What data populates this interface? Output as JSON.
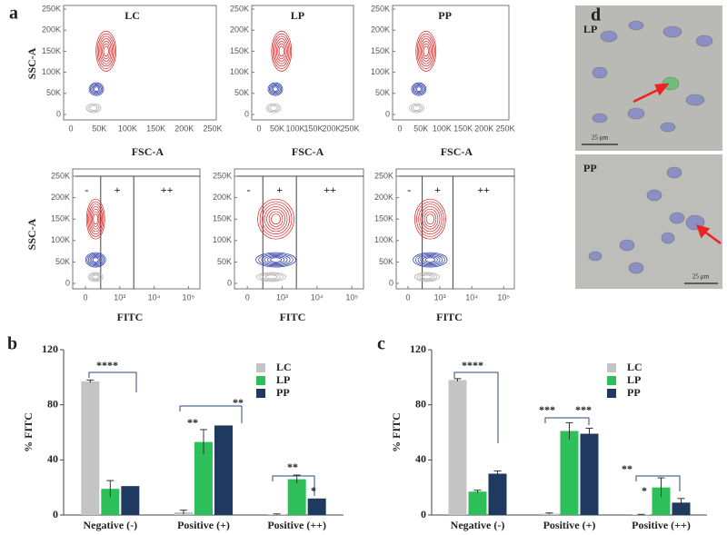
{
  "figure": {
    "panel_letters": [
      "a",
      "b",
      "c",
      "d"
    ]
  },
  "flow_cytometry": {
    "samples": [
      "LC",
      "LP",
      "PP"
    ],
    "ssc_label": "SSC-A",
    "fsc_label": "FSC-A",
    "fitc_label": "FITC",
    "gates": [
      "-",
      "+",
      "++"
    ],
    "scatter_ticks": [
      {
        "value": 0,
        "label": "0"
      },
      {
        "value": 50000,
        "label": "50K"
      },
      {
        "value": 100000,
        "label": "100K"
      },
      {
        "value": 150000,
        "label": "150K"
      },
      {
        "value": 200000,
        "label": "200K"
      },
      {
        "value": 250000,
        "label": "250K"
      }
    ],
    "fitc_ticks": [
      {
        "value": 0,
        "label": "0"
      },
      {
        "value": 1000,
        "label": "10³"
      },
      {
        "value": 10000,
        "label": "10⁴"
      },
      {
        "value": 100000,
        "label": "10⁵"
      }
    ]
  },
  "chart_data": [
    {
      "type": "bar",
      "ylabel": "% FITC",
      "categories": [
        "Negative (-)",
        "Positive (+)",
        "Positive (++)"
      ],
      "series": [
        {
          "name": "LC",
          "color": "#c4c4c4",
          "values": [
            97,
            2,
            0.5
          ],
          "errors": [
            1,
            1.5,
            0.3
          ]
        },
        {
          "name": "LP",
          "color": "#2dbf5a",
          "values": [
            19,
            53,
            26
          ],
          "errors": [
            6,
            9,
            3
          ]
        },
        {
          "name": "PP",
          "color": "#1f3a60",
          "values": [
            21,
            65,
            12
          ],
          "errors": [
            null,
            null,
            null
          ]
        }
      ],
      "ylim": [
        0,
        120
      ],
      "yticks": [
        0,
        40,
        80,
        120
      ],
      "annotations": [
        "****",
        "**",
        "**",
        "**",
        "*"
      ]
    },
    {
      "type": "bar",
      "ylabel": "% FITC",
      "categories": [
        "Negative (-)",
        "Positive (+)",
        "Positive (++)"
      ],
      "series": [
        {
          "name": "LC",
          "color": "#c4c4c4",
          "values": [
            98,
            1,
            0.3
          ],
          "errors": [
            1,
            0.5,
            0.2
          ]
        },
        {
          "name": "LP",
          "color": "#2dbf5a",
          "values": [
            17,
            61,
            20
          ],
          "errors": [
            1,
            6,
            7
          ]
        },
        {
          "name": "PP",
          "color": "#1f3a60",
          "values": [
            30,
            59,
            9
          ],
          "errors": [
            2,
            4,
            3
          ]
        }
      ],
      "ylim": [
        0,
        120
      ],
      "yticks": [
        0,
        40,
        80,
        120
      ],
      "annotations": [
        "****",
        "***",
        "***",
        "**",
        "*"
      ]
    }
  ],
  "microscopy": {
    "panels": [
      "LP",
      "PP"
    ],
    "scale_bar": "25 µm"
  }
}
